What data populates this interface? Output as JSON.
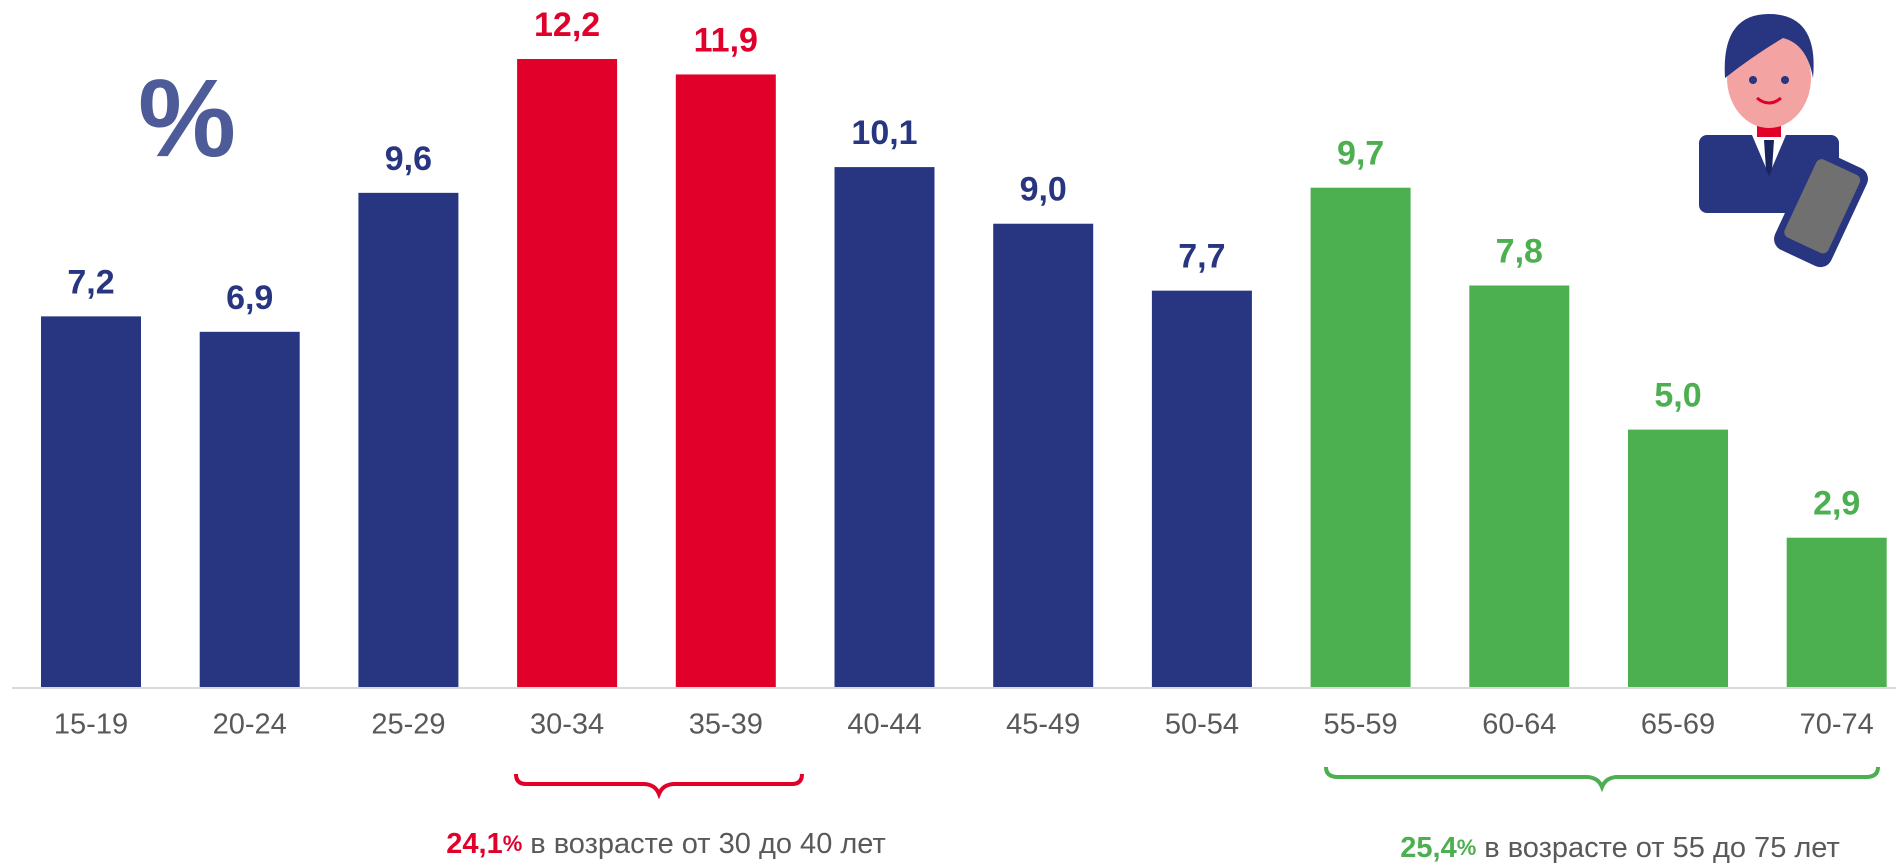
{
  "chart_data": {
    "type": "bar",
    "symbol": "%",
    "categories": [
      "15-19",
      "20-24",
      "25-29",
      "30-34",
      "35-39",
      "40-44",
      "45-49",
      "50-54",
      "55-59",
      "60-64",
      "65-69",
      "70-74"
    ],
    "values": [
      7.2,
      6.9,
      9.6,
      12.2,
      11.9,
      10.1,
      9.0,
      7.7,
      9.7,
      7.8,
      5.0,
      2.9
    ],
    "value_labels": [
      "7,2",
      "6,9",
      "9,6",
      "12,2",
      "11,9",
      "10,1",
      "9,0",
      "7,7",
      "9,7",
      "7,8",
      "5,0",
      "2,9"
    ],
    "colors": [
      "#283580",
      "#283580",
      "#283580",
      "#e0002a",
      "#e0002a",
      "#283580",
      "#283580",
      "#283580",
      "#4caf50",
      "#4caf50",
      "#4caf50",
      "#4caf50"
    ],
    "annotations": [
      {
        "value_label": "24,1",
        "unit": "%",
        "text": "в возрасте  от 30 до 40 лет",
        "color": "#e0002a"
      },
      {
        "value_label": "25,4",
        "unit": "%",
        "text": "в возрасте  от  55 до 75 лет",
        "color": "#4caf50"
      }
    ]
  }
}
